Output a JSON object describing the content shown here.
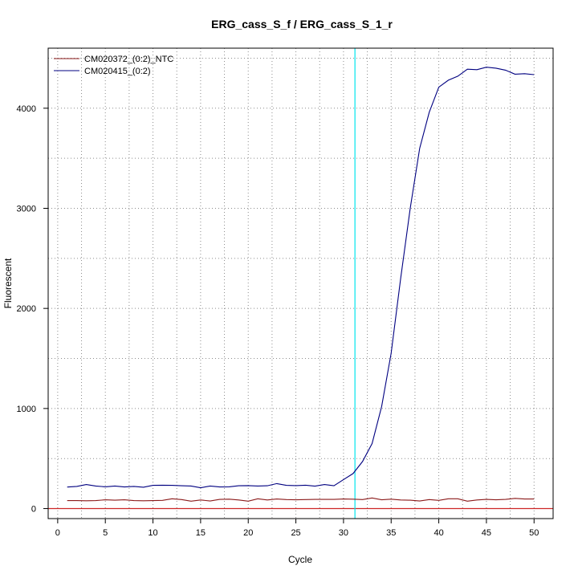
{
  "chart_data": {
    "type": "line",
    "title": "ERG_cass_S_f / ERG_cass_S_1_r",
    "xlabel": "Cycle",
    "ylabel": "Fluorescent",
    "xlim": [
      -1,
      52
    ],
    "ylim": [
      -100,
      4600
    ],
    "x_ticks": [
      0,
      5,
      10,
      15,
      20,
      25,
      30,
      35,
      40,
      45,
      50
    ],
    "y_ticks": [
      0,
      1000,
      2000,
      3000,
      4000
    ],
    "grid": true,
    "legend_position": "top-left",
    "threshold_cycle": 31.2,
    "threshold_color": "#00e5ee",
    "baseline_value": 0,
    "baseline_color": "#cd2626",
    "series": [
      {
        "name": "CM020372_(0:2)_NTC",
        "color": "#8b1a1a",
        "x": [
          1,
          2,
          3,
          4,
          5,
          6,
          7,
          8,
          9,
          10,
          11,
          12,
          13,
          14,
          15,
          16,
          17,
          18,
          19,
          20,
          21,
          22,
          23,
          24,
          25,
          26,
          27,
          28,
          29,
          30,
          31,
          32,
          33,
          34,
          35,
          36,
          37,
          38,
          39,
          40,
          41,
          42,
          43,
          44,
          45,
          46,
          47,
          48,
          49,
          50
        ],
        "values": [
          80,
          80,
          78,
          80,
          88,
          84,
          88,
          80,
          78,
          80,
          82,
          98,
          90,
          74,
          86,
          76,
          92,
          94,
          86,
          74,
          98,
          86,
          96,
          90,
          88,
          90,
          92,
          92,
          92,
          96,
          94,
          90,
          106,
          88,
          94,
          86,
          84,
          76,
          90,
          82,
          98,
          98,
          74,
          86,
          92,
          88,
          92,
          102,
          96,
          96
        ]
      },
      {
        "name": "CM020415_(0:2)",
        "color": "#000080",
        "x": [
          1,
          2,
          3,
          4,
          5,
          6,
          7,
          8,
          9,
          10,
          11,
          12,
          13,
          14,
          15,
          16,
          17,
          18,
          19,
          20,
          21,
          22,
          23,
          24,
          25,
          26,
          27,
          28,
          29,
          30,
          31,
          32,
          33,
          34,
          35,
          36,
          37,
          38,
          39,
          40,
          41,
          42,
          43,
          44,
          45,
          46,
          47,
          48,
          49,
          50
        ],
        "values": [
          215,
          222,
          240,
          226,
          218,
          226,
          216,
          222,
          214,
          232,
          234,
          232,
          228,
          226,
          208,
          226,
          216,
          218,
          228,
          230,
          226,
          228,
          250,
          232,
          230,
          234,
          224,
          240,
          228,
          290,
          350,
          470,
          650,
          1020,
          1550,
          2300,
          3000,
          3600,
          3960,
          4210,
          4280,
          4320,
          4390,
          4385,
          4410,
          4400,
          4380,
          4340,
          4345,
          4335
        ]
      }
    ]
  }
}
